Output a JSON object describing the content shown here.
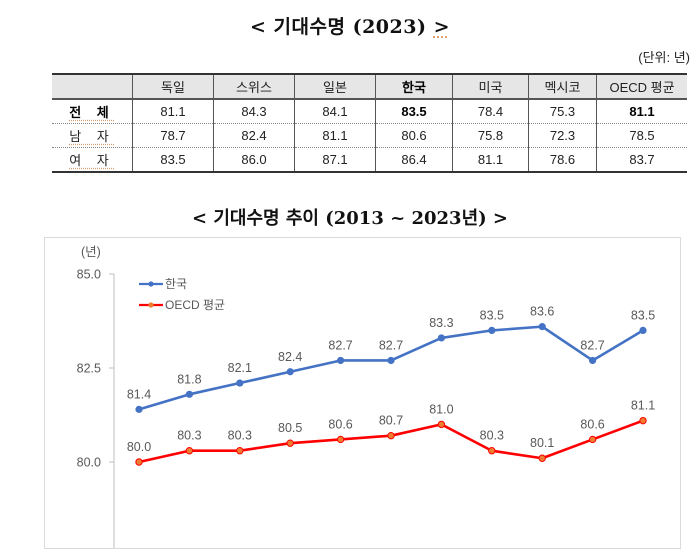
{
  "table_section": {
    "title": "< 기대수명 (2023) >",
    "title_main": "< 기대수명 (2023) ",
    "title_end": ">",
    "unit": "(단위: 년)",
    "columns": [
      "",
      "독일",
      "스위스",
      "일본",
      "한국",
      "미국",
      "멕시코",
      "OECD 평균"
    ],
    "rows": [
      {
        "label": "전 체",
        "values": [
          "81.1",
          "84.3",
          "84.1",
          "83.5",
          "78.4",
          "75.3",
          "81.1"
        ]
      },
      {
        "label": "남 자",
        "values": [
          "78.7",
          "82.4",
          "81.1",
          "80.6",
          "75.8",
          "72.3",
          "78.5"
        ]
      },
      {
        "label": "여 자",
        "values": [
          "83.5",
          "86.0",
          "87.1",
          "86.4",
          "81.1",
          "78.6",
          "83.7"
        ]
      }
    ]
  },
  "chart_section": {
    "title": "< 기대수명 추이 (2013 ~ 2023년) >"
  },
  "chart_data": {
    "type": "line",
    "title": "< 기대수명 추이 (2013 ~ 2023년) >",
    "xlabel": "",
    "ylabel": "(년)",
    "x": [
      "2013",
      "2014",
      "2015",
      "2016",
      "2017",
      "2018",
      "2019",
      "2020",
      "2021",
      "2022",
      "2023"
    ],
    "x_tick_labels_visible": false,
    "yticks": [
      "85.0",
      "82.5",
      "80.0"
    ],
    "ylim_visible": [
      77.5,
      85.0
    ],
    "grid": false,
    "legend_position": "upper-left inside",
    "data_labels": true,
    "series": [
      {
        "name": "한국",
        "color": "#4472C4",
        "values": [
          81.4,
          81.8,
          82.1,
          82.4,
          82.7,
          82.7,
          83.3,
          83.5,
          83.6,
          82.7,
          83.5
        ]
      },
      {
        "name": "OECD 평균",
        "color": "#FF0000",
        "marker_color": "#ED7D31",
        "values": [
          80.0,
          80.3,
          80.3,
          80.5,
          80.6,
          80.7,
          81.0,
          80.3,
          80.1,
          80.6,
          81.1
        ]
      }
    ]
  }
}
